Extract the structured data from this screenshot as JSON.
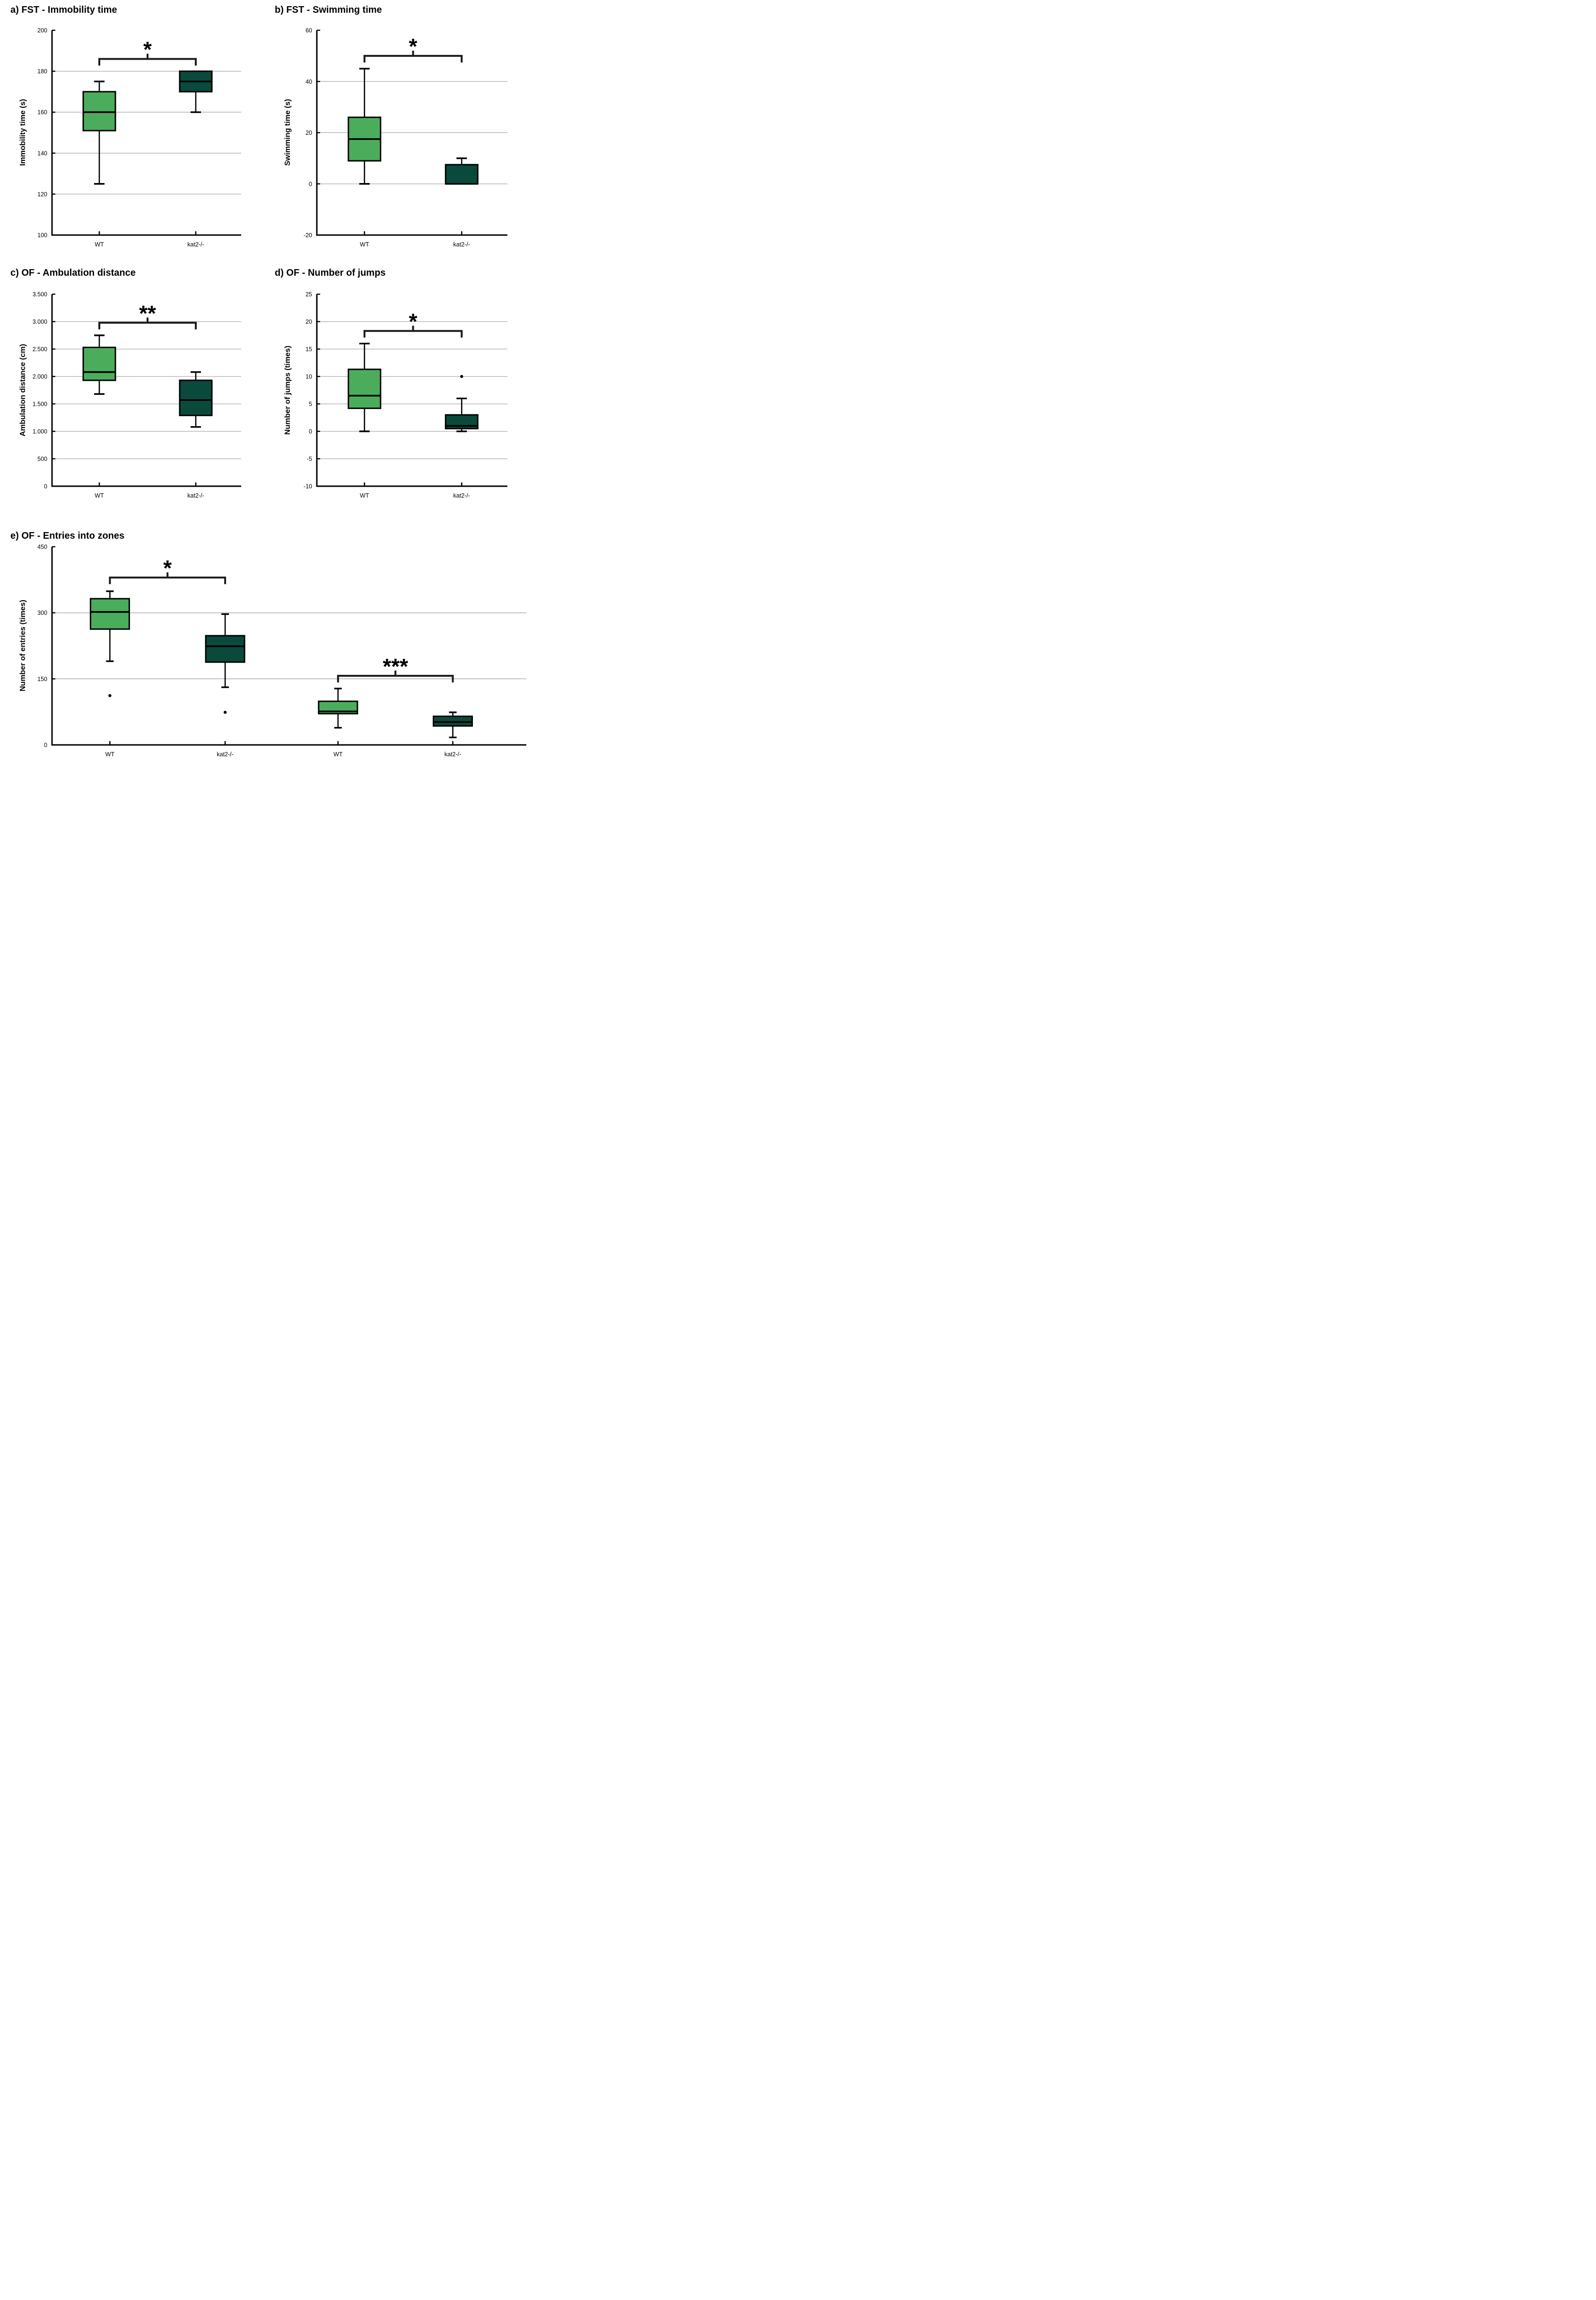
{
  "colors": {
    "wt_box_fill": "#4BAD5C",
    "kat2_box_fill": "#0A4A3C",
    "box_stroke": "#000000",
    "axis": "#000000",
    "gridline": "#A9A9A9",
    "background": "#FFFFFF",
    "sig_bracket": "#1A1A1A"
  },
  "chart_data": [
    {
      "id": "a",
      "type": "box",
      "title": "a) FST - Immobility time",
      "ylabel": "Immobility time (s)",
      "ylim": [
        100,
        200
      ],
      "yticks": [
        {
          "v": 100,
          "label": "100"
        },
        {
          "v": 120,
          "label": "120"
        },
        {
          "v": 140,
          "label": "140"
        },
        {
          "v": 160,
          "label": "160"
        },
        {
          "v": 180,
          "label": "180"
        },
        {
          "v": 200,
          "label": "200"
        }
      ],
      "gridlines": [
        120,
        140,
        160,
        180
      ],
      "categories": [
        "WT",
        "kat2-/-"
      ],
      "boxes": [
        {
          "category": "WT",
          "color": "wt",
          "min": 125,
          "q1": 151,
          "median": 160,
          "q3": 170,
          "max": 175,
          "outliers": []
        },
        {
          "category": "kat2-/-",
          "color": "kat2",
          "min": 160,
          "q1": 170,
          "median": 175,
          "q3": 180,
          "max": 180,
          "outliers": []
        }
      ],
      "significance": [
        {
          "label": "*",
          "from": 0,
          "to": 1,
          "y": 186
        }
      ]
    },
    {
      "id": "b",
      "type": "box",
      "title": "b) FST - Swimming time",
      "ylabel": "Swimming time (s)",
      "ylim": [
        -20,
        60
      ],
      "yticks": [
        {
          "v": -20,
          "label": "-20"
        },
        {
          "v": 0,
          "label": "0"
        },
        {
          "v": 20,
          "label": "20"
        },
        {
          "v": 40,
          "label": "40"
        },
        {
          "v": 60,
          "label": "60"
        }
      ],
      "gridlines": [
        0,
        20,
        40
      ],
      "categories": [
        "WT",
        "kat2-/-"
      ],
      "boxes": [
        {
          "category": "WT",
          "color": "wt",
          "min": 0,
          "q1": 9,
          "median": 17.5,
          "q3": 26,
          "max": 45,
          "outliers": []
        },
        {
          "category": "kat2-/-",
          "color": "kat2",
          "min": 0,
          "q1": 0,
          "median": 0,
          "q3": 7.5,
          "max": 10,
          "outliers": []
        }
      ],
      "significance": [
        {
          "label": "*",
          "from": 0,
          "to": 1,
          "y": 50
        }
      ]
    },
    {
      "id": "c",
      "type": "box",
      "title": "c) OF - Ambulation distance",
      "ylabel": "Ambulation distance (cm)",
      "ylim": [
        0,
        3500
      ],
      "yticks": [
        {
          "v": 0,
          "label": "0"
        },
        {
          "v": 500,
          "label": "500"
        },
        {
          "v": 1000,
          "label": "1.000"
        },
        {
          "v": 1500,
          "label": "1.500"
        },
        {
          "v": 2000,
          "label": "2.000"
        },
        {
          "v": 2500,
          "label": "2.500"
        },
        {
          "v": 3000,
          "label": "3.000"
        },
        {
          "v": 3500,
          "label": "3.500"
        }
      ],
      "gridlines": [
        500,
        1000,
        1500,
        2000,
        2500,
        3000
      ],
      "categories": [
        "WT",
        "kat2-/-"
      ],
      "boxes": [
        {
          "category": "WT",
          "color": "wt",
          "min": 1680,
          "q1": 1930,
          "median": 2080,
          "q3": 2530,
          "max": 2750,
          "outliers": []
        },
        {
          "category": "kat2-/-",
          "color": "kat2",
          "min": 1080,
          "q1": 1290,
          "median": 1570,
          "q3": 1930,
          "max": 2080,
          "outliers": []
        }
      ],
      "significance": [
        {
          "label": "**",
          "from": 0,
          "to": 1,
          "y": 2980
        }
      ]
    },
    {
      "id": "d",
      "type": "box",
      "title": "d) OF - Number of jumps",
      "ylabel": "Number of jumps (times)",
      "ylim": [
        -10,
        25
      ],
      "yticks": [
        {
          "v": -10,
          "label": "-10"
        },
        {
          "v": -5,
          "label": "-5"
        },
        {
          "v": 0,
          "label": "0"
        },
        {
          "v": 5,
          "label": "5"
        },
        {
          "v": 10,
          "label": "10"
        },
        {
          "v": 15,
          "label": "15"
        },
        {
          "v": 20,
          "label": "20"
        },
        {
          "v": 25,
          "label": "25"
        }
      ],
      "gridlines": [
        -5,
        0,
        5,
        10,
        15,
        20
      ],
      "categories": [
        "WT",
        "kat2-/-"
      ],
      "boxes": [
        {
          "category": "WT",
          "color": "wt",
          "min": 0,
          "q1": 4.2,
          "median": 6.5,
          "q3": 11.3,
          "max": 16,
          "outliers": []
        },
        {
          "category": "kat2-/-",
          "color": "kat2",
          "min": 0,
          "q1": 0.5,
          "median": 1,
          "q3": 3,
          "max": 6,
          "outliers": [
            10
          ]
        }
      ],
      "significance": [
        {
          "label": "*",
          "from": 0,
          "to": 1,
          "y": 18.3
        }
      ]
    },
    {
      "id": "e",
      "type": "box",
      "title": "e) OF - Entries into zones",
      "ylabel": "Number of entries (times)",
      "ylim": [
        0,
        450
      ],
      "yticks": [
        {
          "v": 0,
          "label": "0"
        },
        {
          "v": 150,
          "label": "150"
        },
        {
          "v": 300,
          "label": "300"
        },
        {
          "v": 450,
          "label": "450"
        }
      ],
      "gridlines": [
        150,
        300
      ],
      "categories": [
        "WT",
        "kat2-/-",
        "WT",
        "kat2-/-"
      ],
      "boxes": [
        {
          "category": "WT",
          "color": "wt",
          "min": 190,
          "q1": 263,
          "median": 302,
          "q3": 332,
          "max": 349,
          "outliers": [
            112
          ]
        },
        {
          "category": "kat2-/-",
          "color": "kat2",
          "min": 131,
          "q1": 188,
          "median": 224,
          "q3": 248,
          "max": 297,
          "outliers": [
            74
          ]
        },
        {
          "category": "WT",
          "color": "wt",
          "min": 39,
          "q1": 71,
          "median": 76,
          "q3": 99,
          "max": 128,
          "outliers": []
        },
        {
          "category": "kat2-/-",
          "color": "kat2",
          "min": 17,
          "q1": 43,
          "median": 52,
          "q3": 65,
          "max": 74,
          "outliers": []
        }
      ],
      "significance": [
        {
          "label": "*",
          "from": 0,
          "to": 1,
          "y": 380
        },
        {
          "label": "***",
          "from": 2,
          "to": 3,
          "y": 157
        }
      ]
    }
  ]
}
